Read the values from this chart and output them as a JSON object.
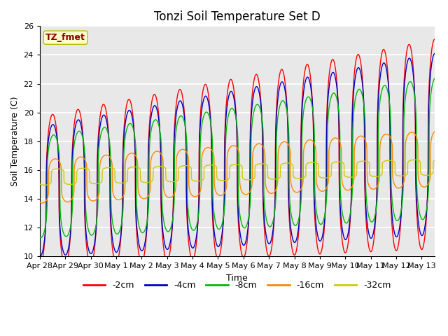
{
  "title": "Tonzi Soil Temperature Set D",
  "xlabel": "Time",
  "ylabel": "Soil Temperature (C)",
  "ylim": [
    10,
    26
  ],
  "annotation": "TZ_fmet",
  "annotation_color": "#8B0000",
  "annotation_bg": "#FFFFCC",
  "annotation_edge": "#BBBB00",
  "background_color": "#E8E8E8",
  "grid_color": "white",
  "legend_labels": [
    "-2cm",
    "-4cm",
    "-8cm",
    "-16cm",
    "-32cm"
  ],
  "legend_colors": [
    "#FF0000",
    "#0000CC",
    "#00BB00",
    "#FF8800",
    "#CCCC00"
  ],
  "title_fontsize": 12,
  "label_fontsize": 9,
  "tick_fontsize": 8,
  "xtick_labels": [
    "Apr 28",
    "Apr 29",
    "Apr 30",
    "May 1",
    "May 2",
    "May 3",
    "May 4",
    "May 5",
    "May 6",
    "May 7",
    "May 8",
    "May 9",
    "May 10",
    "May 11",
    "May 12",
    "May 13"
  ],
  "ytick_values": [
    10,
    12,
    14,
    16,
    18,
    20,
    22,
    24,
    26
  ]
}
